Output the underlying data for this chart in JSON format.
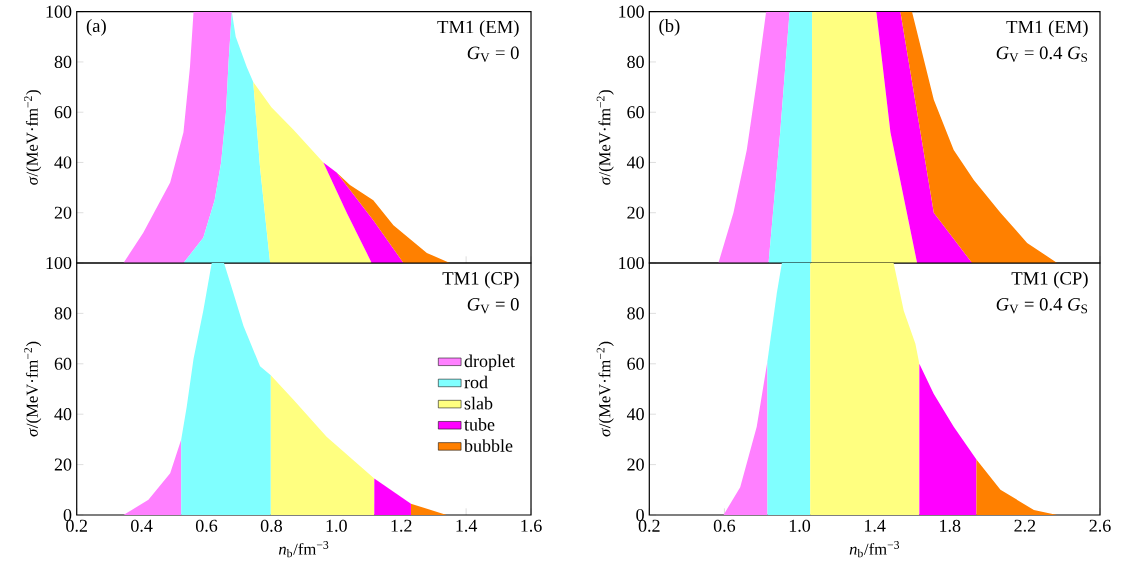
{
  "chart_data": [
    {
      "type": "area",
      "ylabel": "*σ*/(MeV·fm$^{−2}$)",
      "annotations": [
        "(a)",
        "TM1 (EM)",
        "*G*$_{V}$ = 0"
      ],
      "xlim": [
        0.2,
        1.6
      ],
      "xticks": [
        0.2,
        0.4,
        0.6,
        0.8,
        1,
        1.2,
        1.4,
        1.6
      ],
      "ylim": [
        0,
        100
      ],
      "yticks": [
        {
          "value": 0,
          "label": null
        },
        20,
        40,
        60,
        80,
        100
      ],
      "tick_labels": "y",
      "series": [
        {
          "color": "#ff80ff",
          "x": [
            0.344,
            0.405,
            0.488,
            0.529,
            0.549,
            0.56,
            0.678,
            0.668,
            0.66,
            0.645,
            0.625,
            0.59,
            0.529
          ],
          "values": [
            0,
            12,
            32,
            52,
            78,
            100,
            100,
            80,
            60,
            40,
            25,
            10,
            0
          ]
        },
        {
          "color": "#80ffff",
          "x": [
            0.529,
            0.59,
            0.625,
            0.645,
            0.66,
            0.668,
            0.678,
            0.69,
            0.724,
            0.744,
            0.765,
            0.796
          ],
          "values": [
            0,
            10,
            25,
            40,
            60,
            80,
            100,
            90,
            78,
            72,
            38,
            0
          ]
        },
        {
          "color": "#ffff80",
          "x": [
            0.796,
            0.765,
            0.744,
            0.8,
            0.868,
            0.96,
            1.032,
            1.109
          ],
          "values": [
            0,
            38,
            72,
            62,
            53,
            40,
            20,
            0
          ]
        },
        {
          "color": "#ff00ff",
          "x": [
            1.109,
            1.032,
            0.96,
            1.001,
            1.114,
            1.207
          ],
          "values": [
            0,
            20,
            40,
            36,
            17,
            0
          ]
        },
        {
          "color": "#ff8000",
          "x": [
            1.207,
            1.114,
            1.001,
            1.042,
            1.114,
            1.176,
            1.279,
            1.35
          ],
          "values": [
            0,
            17,
            36,
            31,
            25,
            15,
            4,
            0
          ]
        }
      ]
    },
    {
      "type": "area",
      "ylabel": "*σ*/(MeV·fm$^{−2}$)",
      "annotations": [
        "(b)",
        "TM1 (EM)",
        "*G*$_{V}$ = 0.4 *G*$_{S}$"
      ],
      "xlim": [
        0.2,
        2.6
      ],
      "xticks": [
        0.2,
        0.6,
        1,
        1.4,
        1.8,
        2.2,
        2.6
      ],
      "ylim": [
        0,
        100
      ],
      "yticks": [
        {
          "value": 0,
          "label": null
        },
        20,
        40,
        60,
        80,
        100
      ],
      "tick_labels": "y",
      "series": [
        {
          "color": "#ff80ff",
          "x": [
            0.568,
            0.648,
            0.719,
            0.772,
            0.822,
            0.947,
            0.897,
            0.835
          ],
          "values": [
            0,
            20,
            45,
            72,
            100,
            100,
            52,
            0
          ]
        },
        {
          "color": "#80ffff",
          "x": [
            0.835,
            0.897,
            0.947,
            1.067,
            1.064
          ],
          "values": [
            0,
            52,
            100,
            100,
            0
          ]
        },
        {
          "color": "#ffff80",
          "x": [
            1.064,
            1.067,
            1.409,
            1.484,
            1.626
          ],
          "values": [
            0,
            100,
            100,
            52,
            0
          ]
        },
        {
          "color": "#ff00ff",
          "x": [
            1.626,
            1.484,
            1.409,
            1.537,
            1.644,
            1.715,
            1.919
          ],
          "values": [
            0,
            52,
            100,
            100,
            52,
            20,
            0
          ]
        },
        {
          "color": "#ff8000",
          "x": [
            1.919,
            1.715,
            1.644,
            1.537,
            1.599,
            1.715,
            1.821,
            1.928,
            2.07,
            2.212,
            2.372
          ],
          "values": [
            0,
            20,
            52,
            100,
            100,
            65,
            45,
            33,
            20,
            8,
            0
          ]
        }
      ]
    },
    {
      "type": "area",
      "xlabel": "*n*$_{b}$/fm$^{−3}$",
      "ylabel": "*σ*/(MeV·fm$^{−2}$)",
      "annotations": [
        "TM1 (CP)",
        "*G*$_{V}$ = 0"
      ],
      "xlim": [
        0.2,
        1.6
      ],
      "xticks": [
        0.2,
        0.4,
        0.6,
        0.8,
        {
          "value": 1.0,
          "label": "1.0"
        },
        1.2,
        1.4,
        1.6
      ],
      "ylim": [
        0,
        100
      ],
      "yticks": [
        0,
        20,
        40,
        60,
        80,
        100
      ],
      "legend": "right",
      "series": [
        {
          "name": "droplet",
          "color": "#ff80ff",
          "x": [
            0.344,
            0.421,
            0.488,
            0.522,
            0.522
          ],
          "values": [
            0,
            6,
            16.6,
            30,
            0
          ]
        },
        {
          "name": "rod",
          "color": "#80ffff",
          "x": [
            0.522,
            0.522,
            0.539,
            0.56,
            0.59,
            0.616,
            0.654,
            0.683,
            0.714,
            0.765,
            0.798,
            0.798
          ],
          "values": [
            0,
            30,
            43,
            62,
            81,
            100,
            100,
            88,
            75,
            59,
            55.5,
            0
          ]
        },
        {
          "name": "slab",
          "color": "#ffff80",
          "x": [
            0.798,
            0.798,
            0.868,
            0.97,
            1.117,
            1.117
          ],
          "values": [
            0,
            55.5,
            45.7,
            31,
            14.5,
            0
          ]
        },
        {
          "name": "tube",
          "color": "#ff00ff",
          "x": [
            1.117,
            1.117,
            1.23,
            1.23
          ],
          "values": [
            0,
            14.5,
            4.5,
            0
          ]
        },
        {
          "name": "bubble",
          "color": "#ff8000",
          "x": [
            1.23,
            1.23,
            1.34
          ],
          "values": [
            0,
            4.5,
            0
          ]
        }
      ]
    },
    {
      "type": "area",
      "xlabel": "*n*$_{b}$/fm$^{−3}$",
      "ylabel": "*σ*/(MeV·fm$^{−2}$)",
      "annotations": [
        "TM1 (CP)",
        "*G*$_{V}$ = 0.4 *G*$_{S}$"
      ],
      "xlim": [
        0.2,
        2.6
      ],
      "xticks": [
        0.2,
        0.6,
        {
          "value": 1.0,
          "label": "1.0"
        },
        1.4,
        1.8,
        2.2,
        2.6
      ],
      "ylim": [
        0,
        100
      ],
      "yticks": [
        0,
        20,
        40,
        60,
        80,
        100
      ],
      "series": [
        {
          "color": "#ff80ff",
          "x": [
            0.595,
            0.684,
            0.772,
            0.829,
            0.829
          ],
          "values": [
            0,
            11,
            35,
            61,
            0
          ]
        },
        {
          "color": "#80ffff",
          "x": [
            0.829,
            0.829,
            0.879,
            0.906,
            1.057,
            1.057
          ],
          "values": [
            0,
            61,
            88,
            100,
            100,
            0
          ]
        },
        {
          "color": "#ffff80",
          "x": [
            1.057,
            1.057,
            1.501,
            1.555,
            1.617,
            1.638,
            1.638
          ],
          "values": [
            0,
            100,
            100,
            81,
            68,
            60,
            0
          ]
        },
        {
          "color": "#ff00ff",
          "x": [
            1.638,
            1.638,
            1.715,
            1.821,
            1.942,
            1.942
          ],
          "values": [
            0,
            60,
            48,
            35,
            22,
            0
          ]
        },
        {
          "color": "#ff8000",
          "x": [
            1.942,
            1.942,
            2.07,
            2.248,
            2.372
          ],
          "values": [
            0,
            22,
            10,
            2,
            0
          ]
        }
      ]
    }
  ]
}
